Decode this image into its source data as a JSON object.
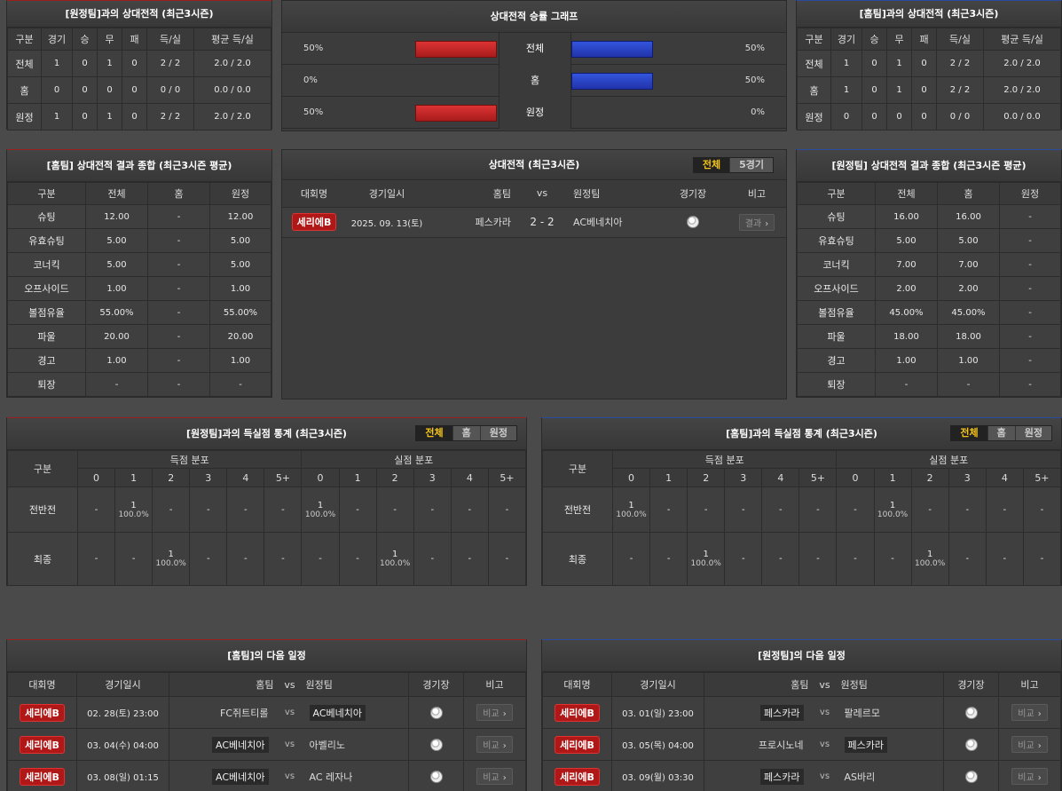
{
  "h2h_away": {
    "title": "[원정팀]과의 상대전적 (최근3시즌)",
    "headers": [
      "구분",
      "경기",
      "승",
      "무",
      "패",
      "득/실",
      "평균 득/실"
    ],
    "rows": [
      [
        "전체",
        "1",
        "0",
        "1",
        "0",
        "2 / 2",
        "2.0 / 2.0"
      ],
      [
        "홈",
        "0",
        "0",
        "0",
        "0",
        "0 / 0",
        "0.0 / 0.0"
      ],
      [
        "원정",
        "1",
        "0",
        "1",
        "0",
        "2 / 2",
        "2.0 / 2.0"
      ]
    ]
  },
  "h2h_home": {
    "title": "[홈팀]과의 상대전적 (최근3시즌)",
    "headers": [
      "구분",
      "경기",
      "승",
      "무",
      "패",
      "득/실",
      "평균 득/실"
    ],
    "rows": [
      [
        "전체",
        "1",
        "0",
        "1",
        "0",
        "2 / 2",
        "2.0 / 2.0"
      ],
      [
        "홈",
        "1",
        "0",
        "1",
        "0",
        "2 / 2",
        "2.0 / 2.0"
      ],
      [
        "원정",
        "0",
        "0",
        "0",
        "0",
        "0 / 0",
        "0.0 / 0.0"
      ]
    ]
  },
  "graph": {
    "title": "상대전적 승률 그래프",
    "rows": [
      {
        "label": "전체",
        "left": "50%",
        "right": "50%",
        "left_value": 50,
        "right_value": 50
      },
      {
        "label": "홈",
        "left": "0%",
        "right": "50%",
        "left_value": 0,
        "right_value": 50
      },
      {
        "label": "원정",
        "left": "50%",
        "right": "0%",
        "left_value": 50,
        "right_value": 0
      }
    ]
  },
  "summary_home": {
    "title": "[홈팀] 상대전적 결과 종합 (최근3시즌 평균)",
    "headers": [
      "구분",
      "전체",
      "홈",
      "원정"
    ],
    "rows": [
      [
        "슈팅",
        "12.00",
        "-",
        "12.00"
      ],
      [
        "유효슈팅",
        "5.00",
        "-",
        "5.00"
      ],
      [
        "코너킥",
        "5.00",
        "-",
        "5.00"
      ],
      [
        "오프사이드",
        "1.00",
        "-",
        "1.00"
      ],
      [
        "볼점유율",
        "55.00%",
        "-",
        "55.00%"
      ],
      [
        "파울",
        "20.00",
        "-",
        "20.00"
      ],
      [
        "경고",
        "1.00",
        "-",
        "1.00"
      ],
      [
        "퇴장",
        "-",
        "-",
        "-"
      ]
    ]
  },
  "summary_away": {
    "title": "[원정팀] 상대전적 결과 종합 (최근3시즌 평균)",
    "headers": [
      "구분",
      "전체",
      "홈",
      "원정"
    ],
    "rows": [
      [
        "슈팅",
        "16.00",
        "16.00",
        "-"
      ],
      [
        "유효슈팅",
        "5.00",
        "5.00",
        "-"
      ],
      [
        "코너킥",
        "7.00",
        "7.00",
        "-"
      ],
      [
        "오프사이드",
        "2.00",
        "2.00",
        "-"
      ],
      [
        "볼점유율",
        "45.00%",
        "45.00%",
        "-"
      ],
      [
        "파울",
        "18.00",
        "18.00",
        "-"
      ],
      [
        "경고",
        "1.00",
        "1.00",
        "-"
      ],
      [
        "퇴장",
        "-",
        "-",
        "-"
      ]
    ]
  },
  "h2h_list": {
    "title": "상대전적 (최근3시즌)",
    "tabs": [
      "전체",
      "5경기"
    ],
    "headers": {
      "league": "대회명",
      "date": "경기일시",
      "home": "홈팀",
      "vs": "vs",
      "away": "원정팀",
      "stadium": "경기장",
      "note": "비고"
    },
    "match": {
      "league": "세리에B",
      "date": "2025. 09. 13(토)",
      "home": "페스카라",
      "score": "2 - 2",
      "away": "AC베네치아",
      "button": "결과",
      "button_arrow": "›"
    }
  },
  "goals_away": {
    "title": "[원정팀]과의 득실점 통계 (최근3시즌)",
    "tabs": [
      "전체",
      "홈",
      "원정"
    ],
    "col_label": "구분",
    "scored_label": "득점 분포",
    "conceded_label": "실점 분포",
    "buckets": [
      "0",
      "1",
      "2",
      "3",
      "4",
      "5+"
    ],
    "rows": [
      {
        "label": "전반전",
        "scored": [
          "-",
          "1|100.0%",
          "-",
          "-",
          "-",
          "-"
        ],
        "conceded": [
          "1|100.0%",
          "-",
          "-",
          "-",
          "-",
          "-"
        ]
      },
      {
        "label": "최종",
        "scored": [
          "-",
          "-",
          "1|100.0%",
          "-",
          "-",
          "-"
        ],
        "conceded": [
          "-",
          "-",
          "1|100.0%",
          "-",
          "-",
          "-"
        ]
      }
    ]
  },
  "goals_home": {
    "title": "[홈팀]과의 득실점 통계 (최근3시즌)",
    "tabs": [
      "전체",
      "홈",
      "원정"
    ],
    "col_label": "구분",
    "scored_label": "득점 분포",
    "conceded_label": "실점 분포",
    "buckets": [
      "0",
      "1",
      "2",
      "3",
      "4",
      "5+"
    ],
    "rows": [
      {
        "label": "전반전",
        "scored": [
          "1|100.0%",
          "-",
          "-",
          "-",
          "-",
          "-"
        ],
        "conceded": [
          "-",
          "1|100.0%",
          "-",
          "-",
          "-",
          "-"
        ]
      },
      {
        "label": "최종",
        "scored": [
          "-",
          "-",
          "1|100.0%",
          "-",
          "-",
          "-"
        ],
        "conceded": [
          "-",
          "-",
          "1|100.0%",
          "-",
          "-",
          "-"
        ]
      }
    ]
  },
  "next_home": {
    "title": "[홈팀]의 다음 일정",
    "headers": {
      "league": "대회명",
      "date": "경기일시",
      "home": "홈팀",
      "vs": "vs",
      "away": "원정팀",
      "stadium": "경기장",
      "note": "비고"
    },
    "rows": [
      {
        "league": "세리에B",
        "date": "02. 28(토) 23:00",
        "home": "FC쥐트티롤",
        "away": "AC베네치아",
        "boxed": "away"
      },
      {
        "league": "세리에B",
        "date": "03. 04(수) 04:00",
        "home": "AC베네치아",
        "away": "아벨리노",
        "boxed": "home"
      },
      {
        "league": "세리에B",
        "date": "03. 08(일) 01:15",
        "home": "AC베네치아",
        "away": "AC 레자나",
        "boxed": "home"
      }
    ],
    "button": "비교",
    "button_arrow": "›",
    "vs": "vs"
  },
  "next_away": {
    "title": "[원정팀]의 다음 일정",
    "headers": {
      "league": "대회명",
      "date": "경기일시",
      "home": "홈팀",
      "vs": "vs",
      "away": "원정팀",
      "stadium": "경기장",
      "note": "비고"
    },
    "rows": [
      {
        "league": "세리에B",
        "date": "03. 01(일) 23:00",
        "home": "페스카라",
        "away": "팔레르모",
        "boxed": "home"
      },
      {
        "league": "세리에B",
        "date": "03. 05(목) 04:00",
        "home": "프로시노네",
        "away": "페스카라",
        "boxed": "away"
      },
      {
        "league": "세리에B",
        "date": "03. 09(월) 03:30",
        "home": "페스카라",
        "away": "AS바리",
        "boxed": "home"
      }
    ],
    "button": "비교",
    "button_arrow": "›",
    "vs": "vs"
  },
  "colors": {
    "win": "#cc2222",
    "loss": "#2244cc",
    "accent": "#f5c518",
    "badge": "#b01818"
  }
}
